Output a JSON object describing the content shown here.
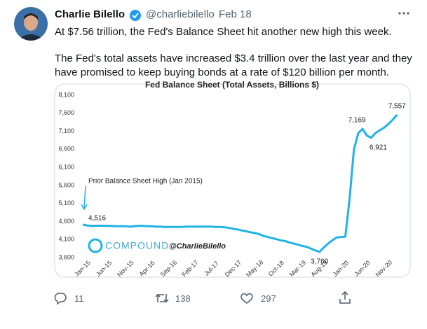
{
  "tweet": {
    "name": "Charlie Bilello",
    "handle": "@charliebilello",
    "date": "Feb 18",
    "text": [
      "At $7.56 trillion, the Fed's Balance Sheet hit another new high this week.",
      "The Fed's total assets have increased $3.4 trillion over the last year and they have promised to keep buying bonds at a rate of $120 billion per month."
    ],
    "replies": 11,
    "retweets": 138,
    "likes": 297
  },
  "chart_data": {
    "type": "line",
    "title": "Fed Balance Sheet (Total Assets, Billions $)",
    "watermark": [
      "COMPOUND",
      "@CharlieBilello"
    ],
    "annotations": [
      "Prior Balance Sheet High (Jan 2015)"
    ],
    "color": "#1fb3e6",
    "categories": [
      "Jan-15",
      null,
      null,
      null,
      null,
      "Jun-15",
      null,
      null,
      null,
      null,
      "Nov-15",
      null,
      null,
      null,
      null,
      "Apr-16",
      null,
      null,
      null,
      null,
      "Sep-16",
      null,
      null,
      null,
      null,
      "Feb-17",
      null,
      null,
      null,
      null,
      "Jul-17",
      null,
      null,
      null,
      null,
      "Dec-17",
      null,
      null,
      null,
      null,
      "May-18",
      null,
      null,
      null,
      null,
      "Oct-18",
      null,
      null,
      null,
      null,
      "Mar-19",
      null,
      null,
      null,
      null,
      "Aug-19",
      null,
      null,
      null,
      null,
      "Jan-20",
      null,
      null,
      null,
      null,
      "Jun-20",
      null,
      null,
      null,
      null,
      "Nov-20",
      null,
      null,
      null
    ],
    "values": [
      4516,
      4490,
      4480,
      4480,
      4485,
      4480,
      4480,
      4475,
      4470,
      4470,
      4470,
      4460,
      4470,
      4480,
      4480,
      4470,
      4470,
      4460,
      4460,
      4450,
      4450,
      4450,
      4450,
      4450,
      4460,
      4460,
      4460,
      4460,
      4460,
      4460,
      4460,
      4450,
      4450,
      4440,
      4420,
      4400,
      4380,
      4350,
      4330,
      4300,
      4280,
      4250,
      4200,
      4170,
      4140,
      4110,
      4080,
      4060,
      4020,
      3990,
      3960,
      3920,
      3900,
      3850,
      3800,
      3760,
      3880,
      3990,
      4080,
      4160,
      4170,
      4180,
      5250,
      6600,
      7050,
      7169,
      6980,
      6921,
      7050,
      7130,
      7200,
      7300,
      7420,
      7557
    ],
    "value_labels": [
      "4,516",
      null,
      null,
      null,
      null,
      null,
      null,
      null,
      null,
      null,
      null,
      null,
      null,
      null,
      null,
      null,
      null,
      null,
      null,
      null,
      null,
      null,
      null,
      null,
      null,
      null,
      null,
      null,
      null,
      null,
      null,
      null,
      null,
      null,
      null,
      null,
      null,
      null,
      null,
      null,
      null,
      null,
      null,
      null,
      null,
      null,
      null,
      null,
      null,
      null,
      null,
      null,
      null,
      null,
      null,
      "3,760",
      null,
      null,
      null,
      null,
      null,
      null,
      null,
      null,
      null,
      "7,169",
      null,
      "6,921",
      null,
      null,
      null,
      null,
      null,
      "7,557"
    ],
    "ylim": [
      3600,
      8100
    ],
    "yticks": [
      {
        "value": 3600,
        "label": "3,600"
      },
      {
        "value": 4100,
        "label": "4,100"
      },
      {
        "value": 4600,
        "label": "4,600"
      },
      {
        "value": 5100,
        "label": "5,100"
      },
      {
        "value": 5600,
        "label": "5,600"
      },
      {
        "value": 6100,
        "label": "6,100"
      },
      {
        "value": 6600,
        "label": "6,600"
      },
      {
        "value": 7100,
        "label": "7,100"
      },
      {
        "value": 7600,
        "label": "7,600"
      },
      {
        "value": 8100,
        "label": "8,100"
      }
    ],
    "grid": false
  }
}
